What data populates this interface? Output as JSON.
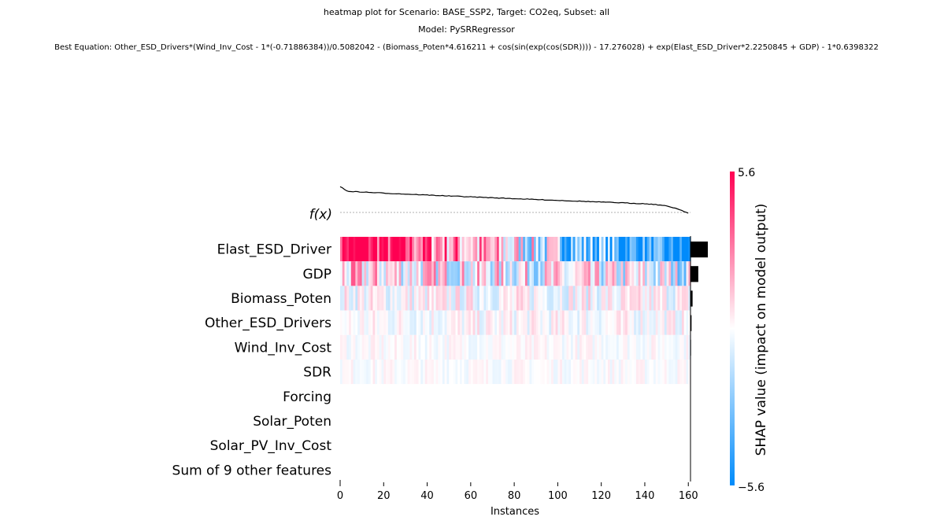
{
  "titles": {
    "line1": "heatmap plot for Scenario: BASE_SSP2, Target: CO2eq, Subset: all",
    "line2": "Model: PySRRegressor",
    "line3": "Best Equation: Other_ESD_Drivers*(Wind_Inv_Cost - 1*(-0.71886384))/0.5082042 - (Biomass_Poten*4.616211 + cos(sin(exp(cos(SDR)))) - 17.276028) + exp(Elast_ESD_Driver*2.2250845 + GDP) - 1*0.6398322"
  },
  "chart_data": {
    "type": "heatmap",
    "xlabel": "Instances",
    "x_ticks": [
      0,
      20,
      40,
      60,
      80,
      100,
      120,
      140,
      160
    ],
    "xlim": [
      0,
      161
    ],
    "fx_label": "f(x)",
    "features": [
      {
        "name": "Elast_ESD_Driver",
        "importance": 1.0,
        "intensity": 1.0,
        "trend": 1.0
      },
      {
        "name": "GDP",
        "importance": 0.45,
        "intensity": 0.55,
        "trend": 0.25
      },
      {
        "name": "Biomass_Poten",
        "importance": 0.12,
        "intensity": 0.25,
        "trend": 0.0
      },
      {
        "name": "Other_ESD_Drivers",
        "importance": 0.06,
        "intensity": 0.18,
        "trend": 0.0
      },
      {
        "name": "Wind_Inv_Cost",
        "importance": 0.03,
        "intensity": 0.1,
        "trend": 0.0
      },
      {
        "name": "SDR",
        "importance": 0.02,
        "intensity": 0.09,
        "trend": 0.0
      },
      {
        "name": "Forcing",
        "importance": 0.0,
        "intensity": 0.0,
        "trend": 0.0
      },
      {
        "name": "Solar_Poten",
        "importance": 0.0,
        "intensity": 0.0,
        "trend": 0.0
      },
      {
        "name": "Solar_PV_Inv_Cost",
        "importance": 0.0,
        "intensity": 0.0,
        "trend": 0.0
      },
      {
        "name": "Sum of 9 other features",
        "importance": 0.0,
        "intensity": 0.0,
        "trend": 0.0
      }
    ],
    "colorbar": {
      "label": "SHAP value (impact on model output)",
      "max": 5.6,
      "min": -5.6,
      "max_label": "5.6",
      "min_label": "−5.6",
      "high_color": "#ff0052",
      "mid_color": "#ffffff",
      "low_color": "#008bfb"
    }
  }
}
